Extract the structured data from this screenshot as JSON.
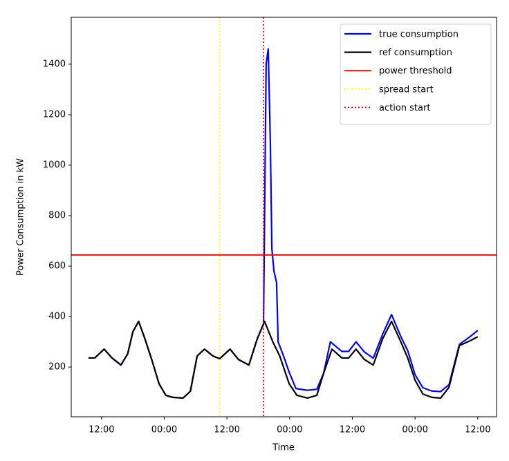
{
  "chart_data": {
    "type": "line",
    "xlabel": "Time",
    "ylabel": "Power Consumption in kW",
    "xlim": [
      6.2,
      87.6
    ],
    "ylim": [
      3,
      1586
    ],
    "xticks": [
      {
        "value": 12,
        "label": "12:00"
      },
      {
        "value": 24,
        "label": "00:00"
      },
      {
        "value": 36,
        "label": "12:00"
      },
      {
        "value": 48,
        "label": "00:00"
      },
      {
        "value": 60,
        "label": "12:00"
      },
      {
        "value": 72,
        "label": "00:00"
      },
      {
        "value": 84,
        "label": "12:00"
      }
    ],
    "yticks": [
      200,
      400,
      600,
      800,
      1000,
      1200,
      1400
    ],
    "legend": "upper right",
    "series": [
      {
        "name": "true consumption",
        "color": "#0000ff",
        "x": [
          9.5,
          10.7,
          12.5,
          14,
          15.7,
          17,
          18,
          19.1,
          20.3,
          21.6,
          23,
          24.3,
          25.6,
          27.6,
          29,
          30.3,
          31.7,
          33.3,
          34.6,
          36.6,
          38.2,
          40.2,
          41.8,
          43.0,
          43.5,
          43.9,
          44.3,
          44.6,
          45,
          45.5,
          45.8,
          46.9,
          47.9,
          49.2,
          51.4,
          53.2,
          54.5,
          55.8,
          58,
          59.3,
          60.7,
          62.3,
          64,
          65.8,
          67.5,
          69.3,
          70.6,
          72,
          73.5,
          75.2,
          76.9,
          78.5,
          80.5,
          82.5,
          84
        ],
        "values": [
          236,
          236,
          271,
          236,
          208,
          252,
          340,
          381,
          312,
          230,
          134,
          88,
          80,
          77,
          104,
          244,
          271,
          244,
          233,
          271,
          230,
          208,
          312,
          370,
          1400,
          1460,
          1100,
          670,
          580,
          535,
          300,
          240,
          180,
          115,
          108,
          112,
          175,
          300,
          262,
          262,
          300,
          260,
          235,
          330,
          408,
          320,
          265,
          170,
          118,
          105,
          103,
          130,
          290,
          320,
          345
        ]
      },
      {
        "name": "ref consumption",
        "color": "#000000",
        "x": [
          9.5,
          10.7,
          12.5,
          14,
          15.7,
          17,
          18,
          19.1,
          20.3,
          21.6,
          23,
          24.3,
          25.6,
          27.6,
          29,
          30.3,
          31.7,
          33.3,
          34.6,
          36.6,
          38.2,
          40.2,
          41.8,
          43.2,
          44.8,
          46.1,
          47.9,
          49.4,
          51.4,
          53.2,
          54.5,
          56.1,
          58,
          59.3,
          60.7,
          62.3,
          64,
          65.8,
          67.5,
          69.3,
          70.6,
          72,
          73.5,
          75.2,
          76.9,
          78.5,
          80.5,
          82.5,
          84
        ],
        "values": [
          236,
          236,
          271,
          236,
          208,
          252,
          340,
          381,
          312,
          230,
          134,
          88,
          80,
          77,
          104,
          244,
          271,
          244,
          233,
          271,
          230,
          208,
          312,
          381,
          299,
          244,
          134,
          88,
          77,
          88,
          175,
          271,
          236,
          236,
          271,
          230,
          208,
          312,
          381,
          299,
          236,
          148,
          93,
          80,
          77,
          120,
          285,
          304,
          320
        ]
      }
    ],
    "reference_lines": [
      {
        "name": "power threshold",
        "color": "#ff0000",
        "style": "solid",
        "orientation": "horizontal",
        "value": 644
      },
      {
        "name": "spread start",
        "color": "#ffff00",
        "style": "dotted",
        "orientation": "vertical",
        "value": 34.6
      },
      {
        "name": "action start",
        "color": "#ff0000",
        "style": "dotted",
        "orientation": "vertical",
        "value": 43
      }
    ]
  }
}
